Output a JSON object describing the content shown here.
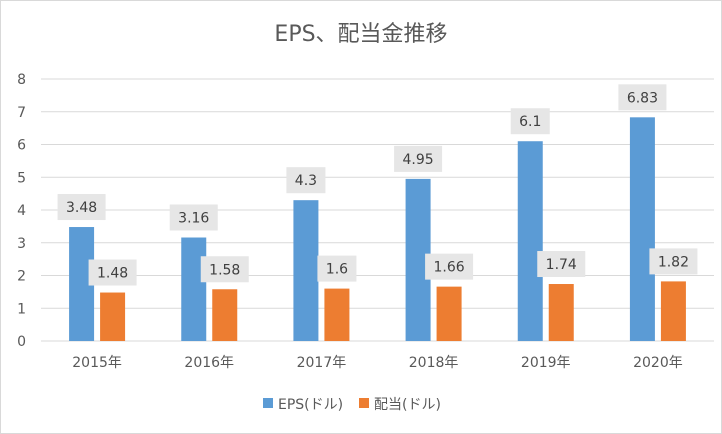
{
  "chart_data": {
    "type": "bar",
    "title": "EPS、配当金推移",
    "categories": [
      "2015年",
      "2016年",
      "2017年",
      "2018年",
      "2019年",
      "2020年"
    ],
    "series": [
      {
        "name": "EPS(ドル)",
        "color": "#5b9bd5",
        "values": [
          3.48,
          3.16,
          4.3,
          4.95,
          6.1,
          6.83
        ]
      },
      {
        "name": "配当(ドル)",
        "color": "#ed7d31",
        "values": [
          1.48,
          1.58,
          1.6,
          1.66,
          1.74,
          1.82
        ]
      }
    ],
    "value_labels": [
      [
        "3.48",
        "3.16",
        "4.3",
        "4.95",
        "6.1",
        "6.83"
      ],
      [
        "1.48",
        "1.58",
        "1.6",
        "1.66",
        "1.74",
        "1.82"
      ]
    ],
    "yticks": [
      "0",
      "1",
      "2",
      "3",
      "4",
      "5",
      "6",
      "7",
      "8"
    ],
    "ylim": [
      0,
      8
    ],
    "xlabel": "",
    "ylabel": "",
    "grid": true,
    "legend_position": "bottom"
  }
}
